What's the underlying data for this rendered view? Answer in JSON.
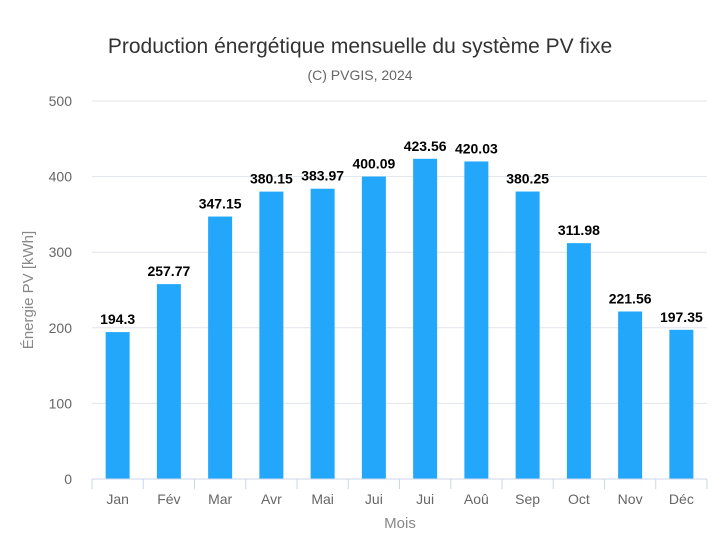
{
  "chart_data": {
    "type": "bar",
    "title": "Production énergétique mensuelle du système PV fixe",
    "subtitle": "(C) PVGIS, 2024",
    "xlabel": "Mois",
    "ylabel": "Énergie PV [kWh]",
    "categories": [
      "Jan",
      "Fév",
      "Mar",
      "Avr",
      "Mai",
      "Jui",
      "Jui",
      "Aoû",
      "Sep",
      "Oct",
      "Nov",
      "Déc"
    ],
    "values": [
      194.3,
      257.77,
      347.15,
      380.15,
      383.97,
      400.09,
      423.56,
      420.03,
      380.25,
      311.98,
      221.56,
      197.35
    ],
    "data_labels": [
      "194.3",
      "257.77",
      "347.15",
      "380.15",
      "383.97",
      "400.09",
      "423.56",
      "420.03",
      "380.25",
      "311.98",
      "221.56",
      "197.35"
    ],
    "ylim": [
      0,
      500
    ],
    "yticks": [
      "0",
      "100",
      "200",
      "300",
      "400",
      "500"
    ],
    "grid": true,
    "legend": "none",
    "bar_color": "#22a7fa"
  }
}
